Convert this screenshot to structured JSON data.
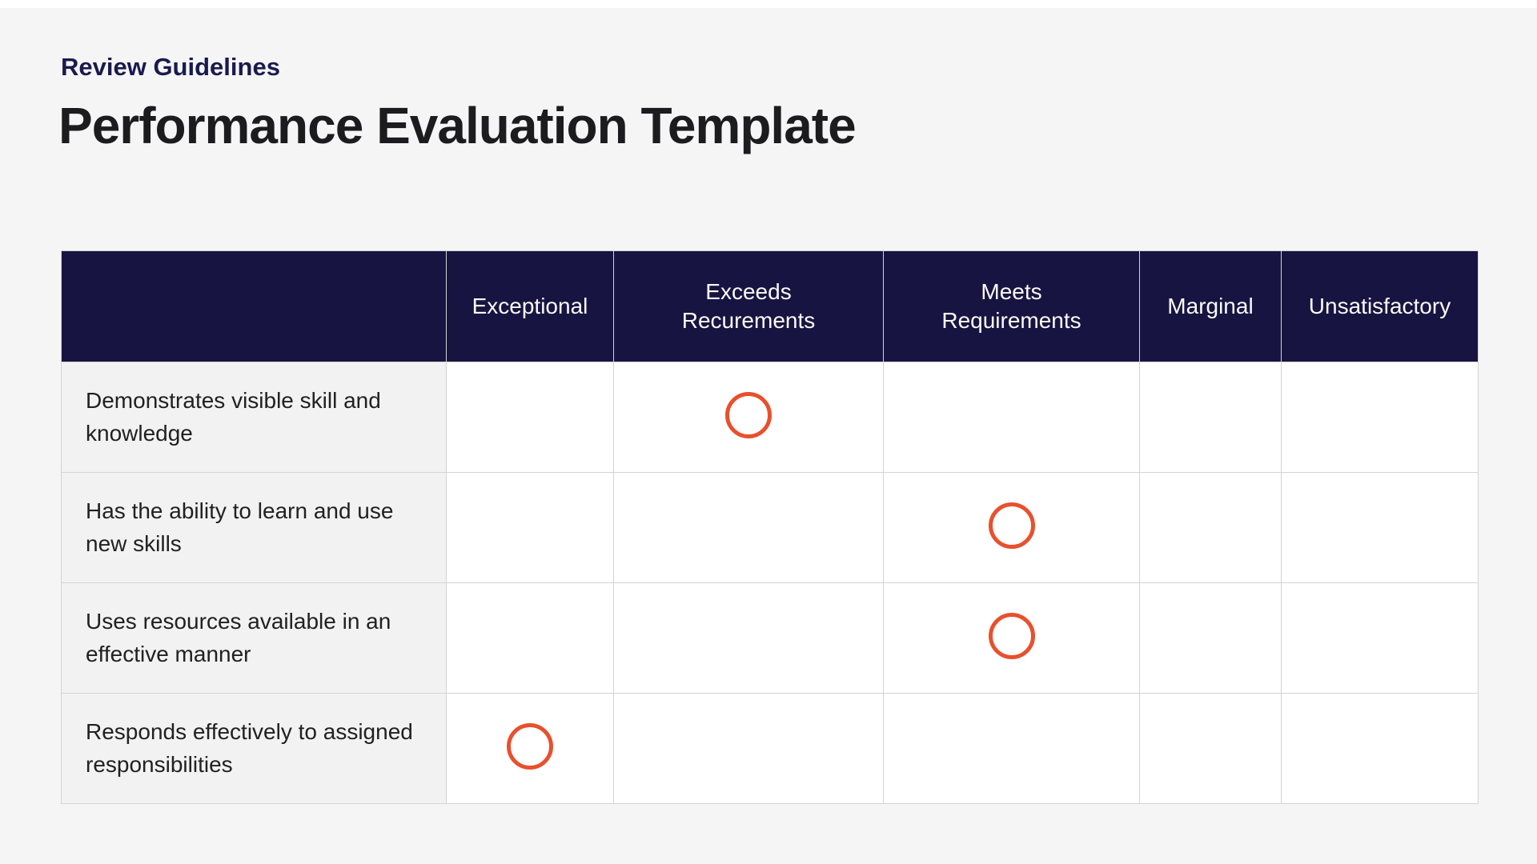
{
  "page": {
    "eyebrow": "Review Guidelines",
    "title": "Performance Evaluation Template"
  },
  "rating_table": {
    "corner_header": "",
    "rating_columns": [
      "Exceptional",
      "Exceeds Recurements",
      "Meets Requirements",
      "Marginal",
      "Unsatisfactory"
    ],
    "criteria": [
      {
        "label": "Demonstrates visible skill and knowledge",
        "rating": "Exceeds Recurements"
      },
      {
        "label": "Has the ability to learn and use new skills",
        "rating": "Meets Requirements"
      },
      {
        "label": "Uses resources available in an effective manner",
        "rating": "Meets Requirements"
      },
      {
        "label": "Responds effectively to assigned responsibilities",
        "rating": "Exceptional"
      }
    ],
    "marker": {
      "shape": "circle-outline",
      "color": "#E8502E"
    }
  },
  "colors": {
    "page_background": "#F5F5F6",
    "header_background": "#181441",
    "header_text": "#FAFAFA",
    "eyebrow_text": "#1A1A4E",
    "title_text": "#1C1C1E",
    "body_text": "#212121",
    "label_cell_background": "#F2F2F2",
    "cell_background": "#FFFFFF",
    "grid_border": "#D3D3D3",
    "marker_stroke": "#E8502E"
  }
}
